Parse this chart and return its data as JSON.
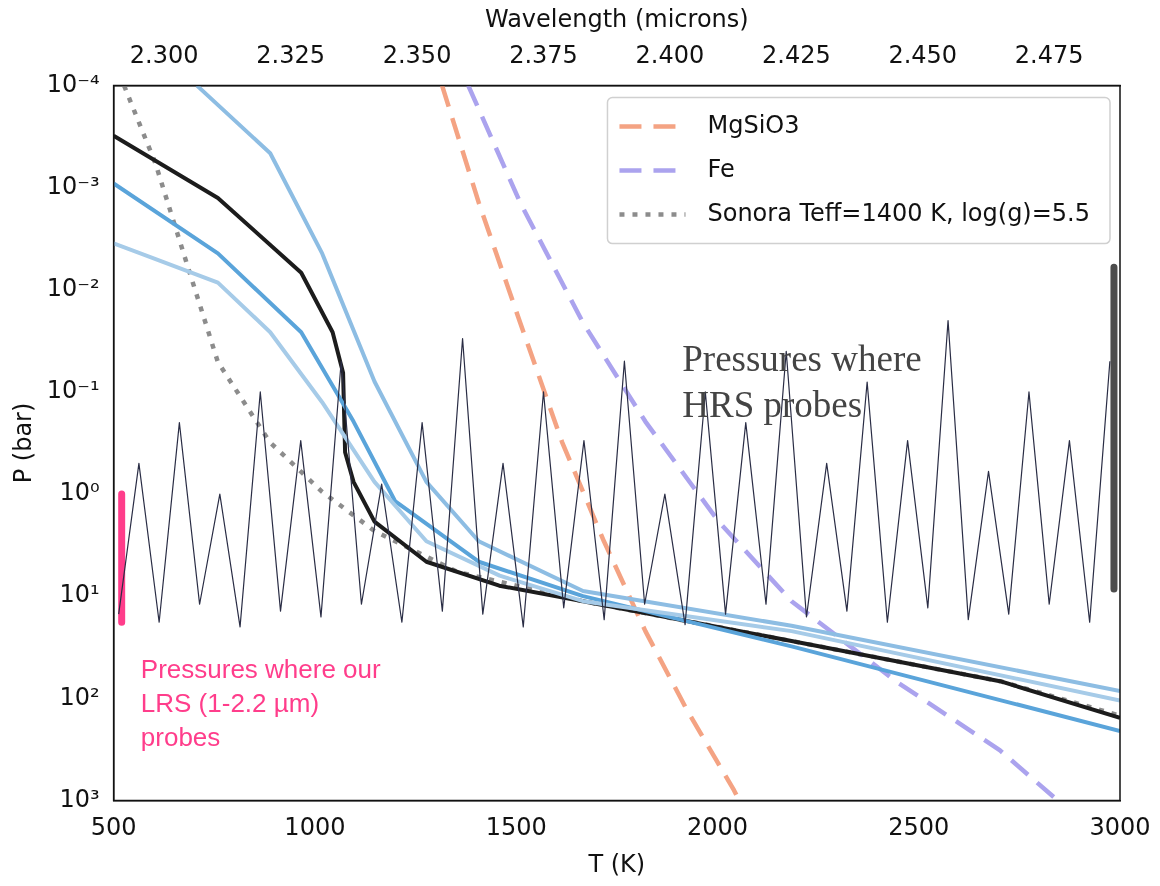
{
  "chart_data": {
    "type": "line",
    "xlabel": "T (K)",
    "ylabel": "P (bar)",
    "x2label": "Wavelength (microns)",
    "xlim": [
      500,
      3000
    ],
    "xticks": [
      500,
      1000,
      1500,
      2000,
      2500,
      3000
    ],
    "x2lim": [
      2.29,
      2.489
    ],
    "x2ticks": [
      {
        "value": 2.3,
        "label": "2.300"
      },
      2.325,
      {
        "value": 2.35,
        "label": "2.350"
      },
      2.375,
      {
        "value": 2.4,
        "label": "2.400"
      },
      2.425,
      {
        "value": 2.45,
        "label": "2.450"
      },
      2.475
    ],
    "ylim": [
      1000,
      0.0001
    ],
    "log": "y",
    "yticks": [
      {
        "value": 0.0001,
        "label": "10⁻⁴"
      },
      {
        "value": 0.001,
        "label": "10⁻³"
      },
      {
        "value": 0.01,
        "label": "10⁻²"
      },
      {
        "value": 0.1,
        "label": "10⁻¹"
      },
      {
        "value": 1,
        "label": "10⁰"
      },
      {
        "value": 10,
        "label": "10¹"
      },
      {
        "value": 100,
        "label": "10²"
      },
      {
        "value": 1000,
        "label": "10³"
      }
    ],
    "grid": false,
    "legend": "top right",
    "marker": "none",
    "series": [
      {
        "axis": "x2",
        "color": "#2a2d45",
        "x": [
          2.291,
          2.295,
          2.299,
          2.303,
          2.307,
          2.311,
          2.315,
          2.319,
          2.323,
          2.327,
          2.331,
          2.335,
          2.339,
          2.343,
          2.347,
          2.351,
          2.355,
          2.359,
          2.363,
          2.367,
          2.371,
          2.375,
          2.379,
          2.383,
          2.387,
          2.391,
          2.395,
          2.399,
          2.403,
          2.407,
          2.411,
          2.415,
          2.419,
          2.423,
          2.427,
          2.431,
          2.435,
          2.439,
          2.443,
          2.447,
          2.451,
          2.455,
          2.459,
          2.463,
          2.467,
          2.471,
          2.475,
          2.479,
          2.483,
          2.487
        ],
        "values": [
          15,
          0.5,
          18,
          0.2,
          12,
          1,
          20,
          0.1,
          14,
          0.3,
          16,
          0.05,
          12,
          0.8,
          18,
          0.2,
          14,
          0.03,
          15,
          0.5,
          20,
          0.1,
          13,
          0.3,
          17,
          0.05,
          12,
          1,
          19,
          0.1,
          15,
          0.2,
          12,
          0.04,
          16,
          0.5,
          14,
          0.08,
          18,
          0.3,
          13,
          0.02,
          17,
          0.6,
          15,
          0.1,
          12,
          0.3,
          18,
          0.05
        ]
      },
      {
        "color": "#a6cbe8",
        "x": [
          500,
          759,
          889,
          1018,
          1148,
          1277,
          1459,
          1666,
          2184,
          3000
        ],
        "values": [
          0.0035,
          0.0085,
          0.026,
          0.126,
          0.76,
          2.9,
          6.3,
          11.2,
          22,
          105
        ]
      },
      {
        "color": "#8dbde3",
        "x": [
          707,
          889,
          1018,
          1148,
          1277,
          1407,
          1666,
          2184,
          3000
        ],
        "values": [
          0.0001,
          0.00046,
          0.0044,
          0.079,
          0.76,
          2.9,
          8.9,
          19.5,
          85
        ]
      },
      {
        "color": "#5aa4da",
        "x": [
          500,
          759,
          966,
          1096,
          1199,
          1407,
          1666,
          2184,
          3000
        ],
        "values": [
          0.00091,
          0.0044,
          0.026,
          0.195,
          1.17,
          4.6,
          10,
          31,
          209
        ]
      },
      {
        "color": "#1c1c1c",
        "x": [
          500,
          759,
          966,
          1044,
          1070,
          1075,
          1096,
          1148,
          1277,
          1458,
          1666,
          2184,
          2702,
          3000
        ],
        "values": [
          0.00031,
          0.00126,
          0.0068,
          0.026,
          0.065,
          0.39,
          0.76,
          1.86,
          4.6,
          7.9,
          11.2,
          27.5,
          68,
          155
        ]
      },
      {
        "name": "MgSiO3",
        "color": "#f4a383",
        "line_style": "dashed",
        "x": [
          1316,
          1407,
          1510,
          1614,
          1718,
          1821,
          1925,
          2041,
          2054
        ],
        "values": [
          0.0001,
          0.0014,
          0.021,
          0.31,
          2.9,
          22,
          132,
          794,
          1000
        ]
      },
      {
        "name": "Fe",
        "color": "#aba3ee",
        "line_style": "dashed",
        "x": [
          1381,
          1510,
          1666,
          1821,
          2003,
          2184,
          2443,
          2702,
          2845
        ],
        "values": [
          0.0001,
          0.0014,
          0.021,
          0.195,
          1.86,
          11.2,
          68,
          324,
          1000
        ]
      },
      {
        "name": "Sonora Teff=1400 K, log(g)=5.5",
        "color": "#8c8c8c",
        "line_style": "dotted",
        "x": [
          526,
          604,
          681,
          759,
          888,
          1018,
          1148,
          1355,
          1666,
          2184,
          2702,
          3000
        ],
        "values": [
          0.0001,
          0.00058,
          0.0054,
          0.051,
          0.31,
          0.95,
          2.3,
          5.8,
          11.2,
          27.5,
          68,
          148
        ]
      },
      {
        "color": "#ff3d8b",
        "x": [
          520,
          520
        ],
        "values": [
          1,
          18
        ]
      },
      {
        "color": "#4d4d4d",
        "x": [
          2985,
          2985
        ],
        "values": [
          0.006,
          8.5
        ]
      }
    ],
    "annotations": [
      "Pressures where HRS probes",
      "Pressures where our LRS (1-2.2 µm) probes"
    ]
  }
}
